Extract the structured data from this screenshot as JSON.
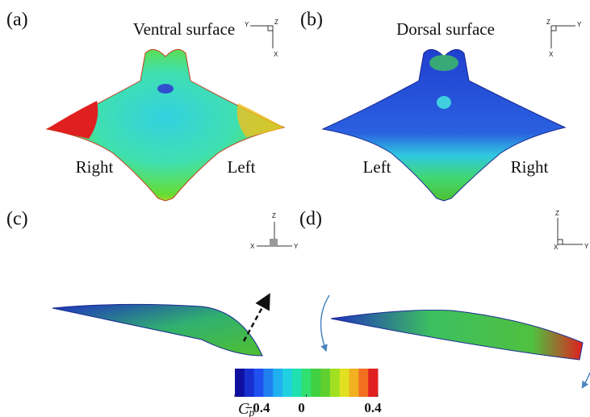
{
  "panels": [
    {
      "label": "(a)",
      "title": "Ventral surface",
      "sides": [
        "Right",
        "Left"
      ],
      "triad": [
        "Y",
        "Z",
        "X"
      ]
    },
    {
      "label": "(b)",
      "title": "Dorsal surface",
      "sides": [
        "Left",
        "Right"
      ],
      "triad": [
        "Z",
        "Y",
        "X"
      ]
    },
    {
      "label": "(c)",
      "triad": [
        "Z",
        "X",
        "Y"
      ]
    },
    {
      "label": "(d)",
      "triad": [
        "Z",
        "X",
        "Y"
      ]
    }
  ],
  "colorbar": {
    "symbol": "C",
    "subscript": "p",
    "lim": [
      -0.4,
      0.4
    ],
    "ticks": [
      {
        "value": -0.4,
        "label": "−0.4"
      },
      0,
      0.4
    ]
  }
}
